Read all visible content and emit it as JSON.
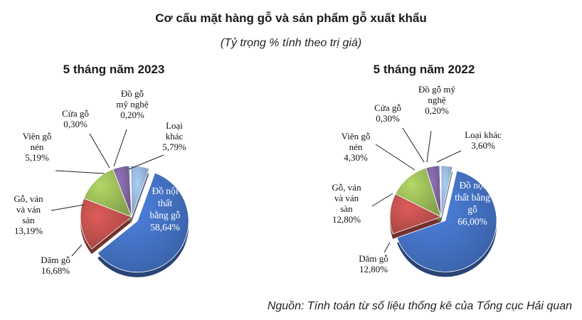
{
  "page": {
    "title": "Cơ cấu mặt hàng gỗ và sản phẩm gỗ xuất khẩu",
    "subtitle": "(Tỷ trọng % tính theo trị giá)",
    "source": "Nguồn: Tính toán từ số liệu thống kê của Tổng cục Hải quan"
  },
  "colors": {
    "do_noi_that": "#4472c4",
    "dam_go": "#c0504d",
    "go_van": "#9bbb59",
    "vien_go": "#8064a2",
    "cua_go": "#4bacc6",
    "do_go_my_nghe": "#f79646",
    "loai_khac": "#95b3d7"
  },
  "chart_data": [
    {
      "type": "pie",
      "title": "5 tháng năm 2023",
      "slices": [
        {
          "key": "do_noi_that",
          "label_lines": [
            "Đồ nội",
            "thất",
            "bằng gỗ",
            "58,64%"
          ],
          "value": 58.64
        },
        {
          "key": "dam_go",
          "label_lines": [
            "Dăm gỗ",
            "16,68%"
          ],
          "value": 16.68
        },
        {
          "key": "go_van",
          "label_lines": [
            "Gỗ, ván",
            "và ván",
            "sàn",
            "13,19%"
          ],
          "value": 13.19
        },
        {
          "key": "vien_go",
          "label_lines": [
            "Viên gỗ",
            "nén",
            "5,19%"
          ],
          "value": 5.19
        },
        {
          "key": "cua_go",
          "label_lines": [
            "Cửa gỗ",
            "0,30%"
          ],
          "value": 0.3
        },
        {
          "key": "do_go_my_nghe",
          "label_lines": [
            "Đồ gỗ",
            "mỹ nghệ",
            "0,20%"
          ],
          "value": 0.2
        },
        {
          "key": "loai_khac",
          "label_lines": [
            "Loại",
            "khác",
            "5,79%"
          ],
          "value": 5.79
        }
      ]
    },
    {
      "type": "pie",
      "title": "5 tháng năm 2022",
      "slices": [
        {
          "key": "do_noi_that",
          "label_lines": [
            "Đồ nội",
            "thất bằng",
            "gỗ",
            "66,00%"
          ],
          "value": 66.0
        },
        {
          "key": "dam_go",
          "label_lines": [
            "Dăm gỗ",
            "12,80%"
          ],
          "value": 12.8
        },
        {
          "key": "go_van",
          "label_lines": [
            "Gỗ, ván",
            "và ván",
            "sàn",
            "12,80%"
          ],
          "value": 12.8
        },
        {
          "key": "vien_go",
          "label_lines": [
            "Viên gỗ",
            "nén",
            "4,30%"
          ],
          "value": 4.3
        },
        {
          "key": "cua_go",
          "label_lines": [
            "Cửa gỗ",
            "0,30%"
          ],
          "value": 0.3
        },
        {
          "key": "do_go_my_nghe",
          "label_lines": [
            "Đồ gỗ mỹ",
            "nghệ",
            "0,20%"
          ],
          "value": 0.2
        },
        {
          "key": "loai_khac",
          "label_lines": [
            "Loại khác",
            "3,60%"
          ],
          "value": 3.6
        }
      ]
    }
  ]
}
